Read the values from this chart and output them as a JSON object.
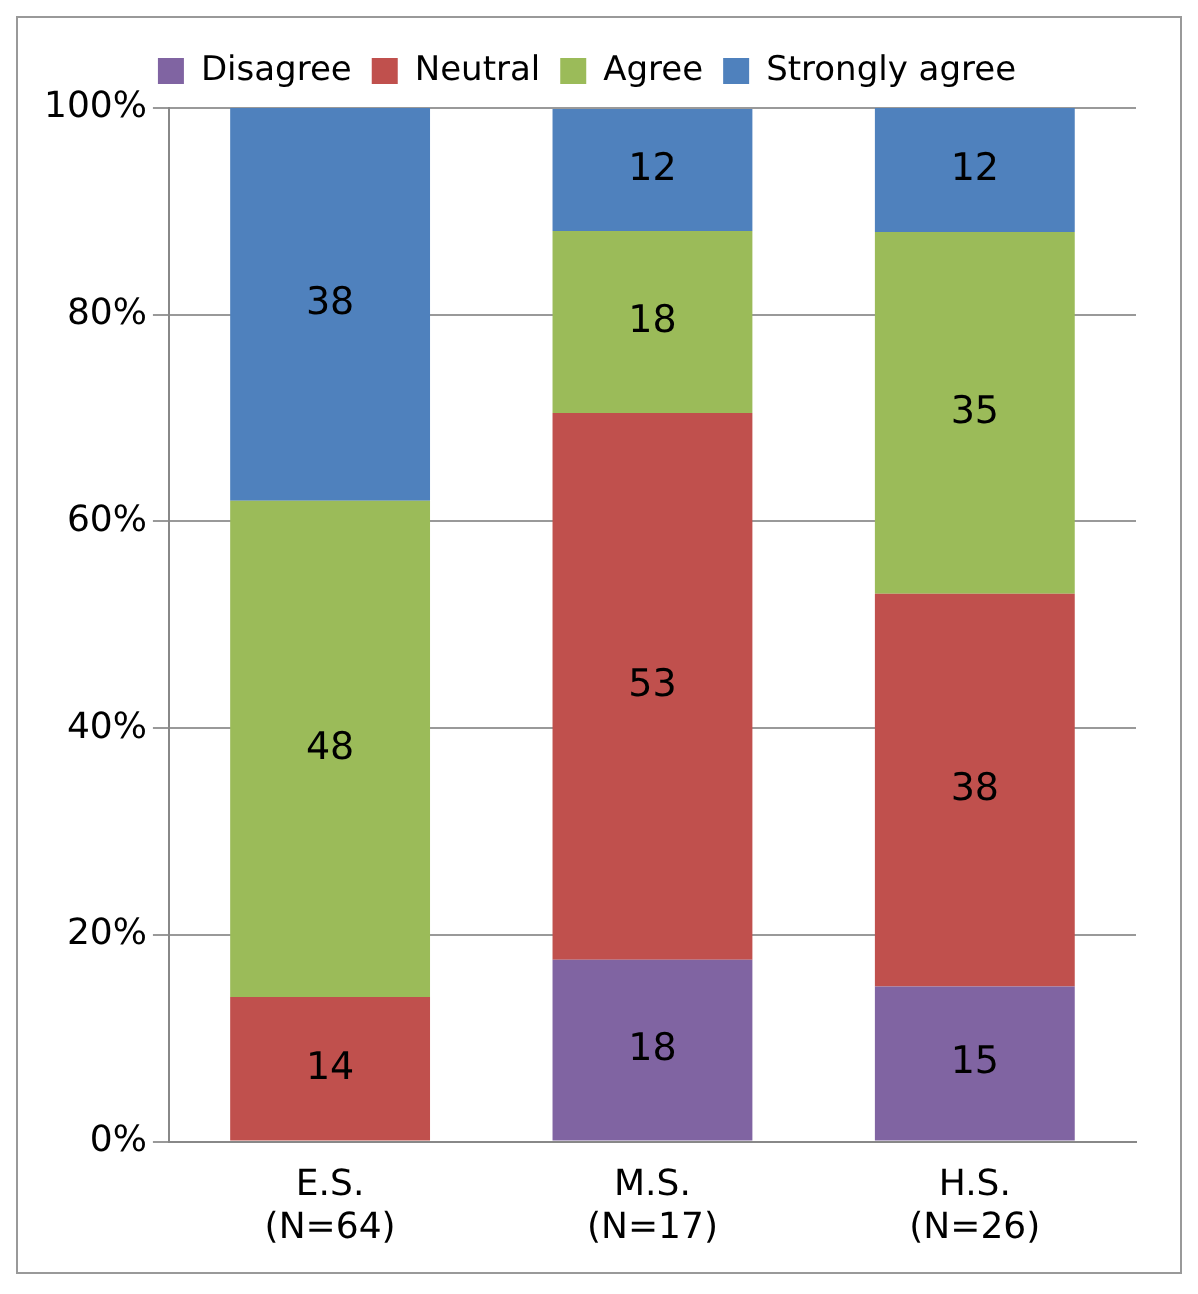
{
  "chart_data": {
    "type": "bar",
    "stacked": true,
    "categories": [
      "E.S.\n(N=64)",
      "M.S.\n(N=17)",
      "H.S.\n(N=26)"
    ],
    "series": [
      {
        "name": "Disagree",
        "color": "#8064a2",
        "values": [
          0,
          17.6,
          15
        ],
        "value_labels": [
          null,
          "18",
          "15"
        ]
      },
      {
        "name": "Neutral",
        "color": "#c0504d",
        "values": [
          14,
          52.9,
          38
        ],
        "value_labels": [
          "14",
          "53",
          "38"
        ]
      },
      {
        "name": "Agree",
        "color": "#9bbb59",
        "values": [
          48,
          17.6,
          35
        ],
        "value_labels": [
          "48",
          "18",
          "35"
        ]
      },
      {
        "name": "Strongly agree",
        "color": "#4f81bd",
        "values": [
          38,
          11.8,
          12
        ],
        "value_labels": [
          "38",
          "12",
          "12"
        ]
      }
    ],
    "ylim": [
      0,
      100
    ],
    "yticks": [
      {
        "value": 0,
        "label": "0%"
      },
      {
        "value": 20,
        "label": "20%"
      },
      {
        "value": 40,
        "label": "40%"
      },
      {
        "value": 60,
        "label": "60%"
      },
      {
        "value": 80,
        "label": "80%"
      },
      {
        "value": 100,
        "label": "100%"
      }
    ],
    "grid": "y",
    "legend": "top"
  }
}
